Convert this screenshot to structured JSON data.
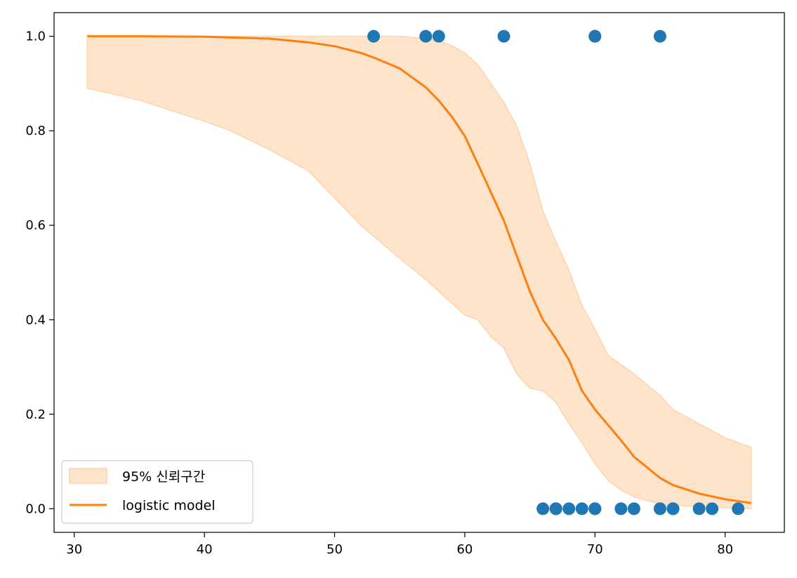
{
  "chart_data": {
    "type": "line",
    "title": "",
    "xlabel": "",
    "ylabel": "",
    "xlim": [
      28.45,
      84.55
    ],
    "ylim": [
      -0.05,
      1.05
    ],
    "xticks": [
      30,
      40,
      50,
      60,
      70,
      80
    ],
    "yticks": [
      0.0,
      0.2,
      0.4,
      0.6,
      0.8,
      1.0
    ],
    "xtick_labels": [
      "30",
      "40",
      "50",
      "60",
      "70",
      "80"
    ],
    "ytick_labels": [
      "0.0",
      "0.2",
      "0.4",
      "0.6",
      "0.8",
      "1.0"
    ],
    "grid": false,
    "legend_position": "lower-left",
    "colors": {
      "points": "#1f77b4",
      "line": "#ff7f0e",
      "band_fill": "#ffe4cc",
      "band_edge": "#ffd2ad"
    },
    "confidence_band": {
      "name": "95% 신뢰구간",
      "x": [
        31,
        35,
        40,
        42,
        45,
        48,
        52,
        55,
        57,
        58,
        59,
        60,
        61,
        62,
        63,
        64,
        65,
        66,
        67,
        68,
        69,
        70,
        71,
        72,
        73,
        75,
        76,
        78,
        80,
        81,
        82
      ],
      "lower": [
        0.89,
        0.865,
        0.82,
        0.8,
        0.76,
        0.715,
        0.6,
        0.53,
        0.485,
        0.46,
        0.435,
        0.41,
        0.4,
        0.365,
        0.34,
        0.285,
        0.255,
        0.25,
        0.225,
        0.18,
        0.14,
        0.095,
        0.06,
        0.04,
        0.025,
        0.01,
        0.008,
        0.004,
        0.002,
        0.001,
        0.0
      ],
      "upper": [
        1.0,
        1.0,
        1.0,
        1.0,
        1.0,
        1.0,
        1.0,
        1.0,
        0.995,
        0.99,
        0.98,
        0.965,
        0.94,
        0.9,
        0.86,
        0.81,
        0.73,
        0.63,
        0.565,
        0.505,
        0.43,
        0.38,
        0.325,
        0.305,
        0.285,
        0.24,
        0.21,
        0.18,
        0.15,
        0.14,
        0.13
      ]
    },
    "series": [
      {
        "name": "logistic model",
        "type": "line",
        "x": [
          31,
          35,
          40,
          45,
          48,
          50,
          52,
          53,
          55,
          57,
          58,
          59,
          60,
          61,
          62,
          63,
          64,
          65,
          66,
          67,
          68,
          69,
          70,
          72,
          73,
          75,
          76,
          78,
          80,
          82
        ],
        "y": [
          1.0,
          1.0,
          0.999,
          0.995,
          0.987,
          0.979,
          0.965,
          0.955,
          0.932,
          0.892,
          0.864,
          0.83,
          0.789,
          0.73,
          0.67,
          0.61,
          0.535,
          0.46,
          0.4,
          0.36,
          0.315,
          0.25,
          0.21,
          0.145,
          0.11,
          0.065,
          0.05,
          0.032,
          0.02,
          0.012
        ]
      },
      {
        "type": "scatter",
        "x": [
          53,
          57,
          58,
          63,
          70,
          70,
          75,
          66,
          67,
          67,
          67,
          68,
          69,
          70,
          70,
          70,
          72,
          73,
          75,
          75,
          76,
          76,
          78,
          79,
          81
        ],
        "y": [
          1,
          1,
          1,
          1,
          1,
          1,
          1,
          0,
          0,
          0,
          0,
          0,
          0,
          0,
          0,
          0,
          0,
          0,
          0,
          0,
          0,
          0,
          0,
          0,
          0
        ]
      }
    ]
  }
}
